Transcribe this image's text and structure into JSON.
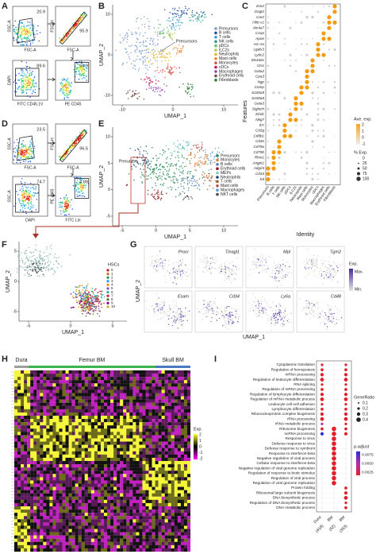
{
  "A": {
    "label": "A",
    "plots": [
      {
        "y_label": "SSC-A",
        "x_label": "FSC-A",
        "gate": "20.9"
      },
      {
        "y_label": "FSC-H",
        "x_label": "FSC-A",
        "gate": "95.9"
      },
      {
        "y_label": "DAPI",
        "x_label": "FITC CD45.1V",
        "gate": "89.6"
      },
      {
        "x_label": "PE CD45",
        "gate": "50.9"
      }
    ]
  },
  "B": {
    "label": "B",
    "x_label": "UMAP_1",
    "y_label": "UMAP_2",
    "xticks": [
      "-10",
      "0",
      "10"
    ],
    "yticks": [
      "10",
      "0",
      "-10"
    ],
    "annotation": "Precursors",
    "legend": [
      {
        "name": "Precursors",
        "color": "#7d9ccc"
      },
      {
        "name": "B cells",
        "color": "#1f4e9c"
      },
      {
        "name": "T cells",
        "color": "#3aa0c8"
      },
      {
        "name": "NK cells",
        "color": "#2e9e8e"
      },
      {
        "name": "pDCs",
        "color": "#66bb6a"
      },
      {
        "name": "ILC2s",
        "color": "#a5c85a"
      },
      {
        "name": "Neutrophils",
        "color": "#e6b422"
      },
      {
        "name": "Mast cells",
        "color": "#f08030"
      },
      {
        "name": "Monocytes",
        "color": "#d9534f"
      },
      {
        "name": "cDCs",
        "color": "#c2185b"
      },
      {
        "name": "Macrophages",
        "color": "#8e44ad"
      },
      {
        "name": "Erythroid cells",
        "color": "#6d4c41"
      },
      {
        "name": "Fibroblasts",
        "color": "#2e7d32"
      }
    ]
  },
  "C": {
    "label": "C",
    "y_label": "Features",
    "x_label": "Identity",
    "genes": [
      "Ear2",
      "Gngt2",
      "Car2",
      "Hbb-s1",
      "Ms4a7",
      "C1qa",
      "Apoe",
      "H2-Aa",
      "Lgals3",
      "Ly6c2",
      "Ms4a6c",
      "Ctss",
      "Gata2",
      "Cpa3",
      "Ngp",
      "Camp",
      "S100a9",
      "S100a8",
      "Gata3",
      "Siglech",
      "Klrd1",
      "Nkg7",
      "Il7r",
      "Cd3g",
      "Cd8b1",
      "Cd3e",
      "Cd79a",
      "Cd79b",
      "Rhm1",
      "Angpt1",
      "Adgrl4",
      "Cd34",
      "Kit"
    ],
    "identities": [
      "Precursors",
      "B cells",
      "T cells",
      "NK cells",
      "pDCs",
      "ILC2s",
      "Neutrophils",
      "Mast cells",
      "Monocytes",
      "cDCs",
      "Macrophages",
      "Erythroid cells",
      "Fibroblasts"
    ],
    "ave_exp_title": "Ave. exp.",
    "ave_exp_ticks": [
      "2",
      "1",
      "0",
      "-1"
    ],
    "pct_title": "% Exp.",
    "pct_ticks": [
      "0",
      "25",
      "50",
      "75",
      "100"
    ]
  },
  "D": {
    "label": "D",
    "plots": [
      {
        "y_label": "SSC-A",
        "x_label": "FSC-A",
        "gate": "23.5"
      },
      {
        "y_label": "FSC-H",
        "x_label": "FSC-A",
        "gate": "96.5"
      },
      {
        "y_label": "SSC-A",
        "x_label": "DAPI",
        "gate": "74.7"
      },
      {
        "y_label": "PE cd45",
        "x_label": "FITC Lin",
        "gate": "4.89"
      }
    ]
  },
  "E": {
    "label": "E",
    "x_label": "UMAP_1",
    "y_label": "UMAP_2",
    "xticks": [
      "-5",
      "0",
      "5",
      "10"
    ],
    "yticks": [
      "10",
      "5",
      "0",
      "-5"
    ],
    "annotation": "Precursors",
    "legend": [
      {
        "name": "Precursors",
        "color": "#2e8b57"
      },
      {
        "name": "Monocytes",
        "color": "#e07b39"
      },
      {
        "name": "B cells",
        "color": "#4f7fc0"
      },
      {
        "name": "Erythroid cells",
        "color": "#8b1a1a"
      },
      {
        "name": "MEPs",
        "color": "#7fc8c8"
      },
      {
        "name": "Neutrophils",
        "color": "#1f3f7a"
      },
      {
        "name": "T cells",
        "color": "#a05a2c"
      },
      {
        "name": "Mast cells",
        "color": "#c0504d"
      },
      {
        "name": "Macrophages",
        "color": "#5a9bd5"
      },
      {
        "name": "NKT cells",
        "color": "#4a4a4a"
      }
    ]
  },
  "F": {
    "label": "F",
    "x_label": "UMAP_1",
    "y_label": "UMAP_2",
    "xticks": [
      "-5",
      "0",
      "5"
    ],
    "yticks": [
      "5",
      "0",
      "-5"
    ],
    "legend_title": "HSCs",
    "clusters": [
      "0",
      "1",
      "2",
      "3",
      "4",
      "5",
      "6",
      "7",
      "8",
      "9",
      "10"
    ]
  },
  "G": {
    "label": "G",
    "x_label": "UMAP_1",
    "y_label": "UMAP_2",
    "genes": [
      "Procr",
      "Tinagl1",
      "Mpl",
      "Tgm2",
      "Esam",
      "Cd34",
      "Ly6a",
      "Cd48"
    ],
    "legend_title": "Exp.",
    "legend_max": "Max.",
    "legend_min": "Min."
  },
  "H": {
    "label": "H",
    "groups": [
      {
        "name": "Dura",
        "color": "#9e9e9e"
      },
      {
        "name": "Femur BM",
        "color": "#3cb44b"
      },
      {
        "name": "Skull BM",
        "color": "#4a78c2"
      }
    ],
    "legend_title": "Exp.",
    "legend_ticks": [
      "2",
      "1",
      "0",
      "-1",
      "-2"
    ]
  },
  "I": {
    "label": "I",
    "terms": [
      "Cytoplasmic translation",
      "Regulation of hemopoiesis",
      "mRNA processing",
      "Regulation of leukocyte differentiation",
      "RNA splicing",
      "Regulation of mRNA processing",
      "Regulation of lymphocyte differentiation",
      "Regulation of mRNA metabolic process",
      "Leukocyte cell-cell adhesion",
      "Lymphocyte differentiation",
      "Ribonucleoprotein complex biogenesis",
      "rRNA processing",
      "rRNA metabolic process",
      "Ribosome biogenesis",
      "ncRNA processing",
      "Response to virus",
      "Defense response to virus",
      "Defense response to symbiont",
      "Response to interferon-beta",
      "Negative regulation of viral process",
      "Cellular response to interferon-beta",
      "Negative regulation of viral genome replication",
      "Regulation of response to biotic stimulus",
      "Regulation of viral process",
      "Regulation of viral genome replication",
      "Protein folding",
      "Ribosomal large subunit biogenesis",
      "DNA biosynthetic process",
      "Regulation of DNA biosynthetic process",
      "DNA metabolic process"
    ],
    "columns": [
      {
        "name": "Dura",
        "count": "(418)"
      },
      {
        "name": "BM",
        "count": "(52)"
      },
      {
        "name": "BM",
        "count": "(353)"
      }
    ],
    "size_title": "GeneRatio",
    "size_ticks": [
      "0.1",
      "0.2",
      "0.3",
      "0.4"
    ],
    "color_title": "p.adjust",
    "color_ticks": [
      "0.0075",
      "0.0050",
      "0.0025"
    ]
  }
}
